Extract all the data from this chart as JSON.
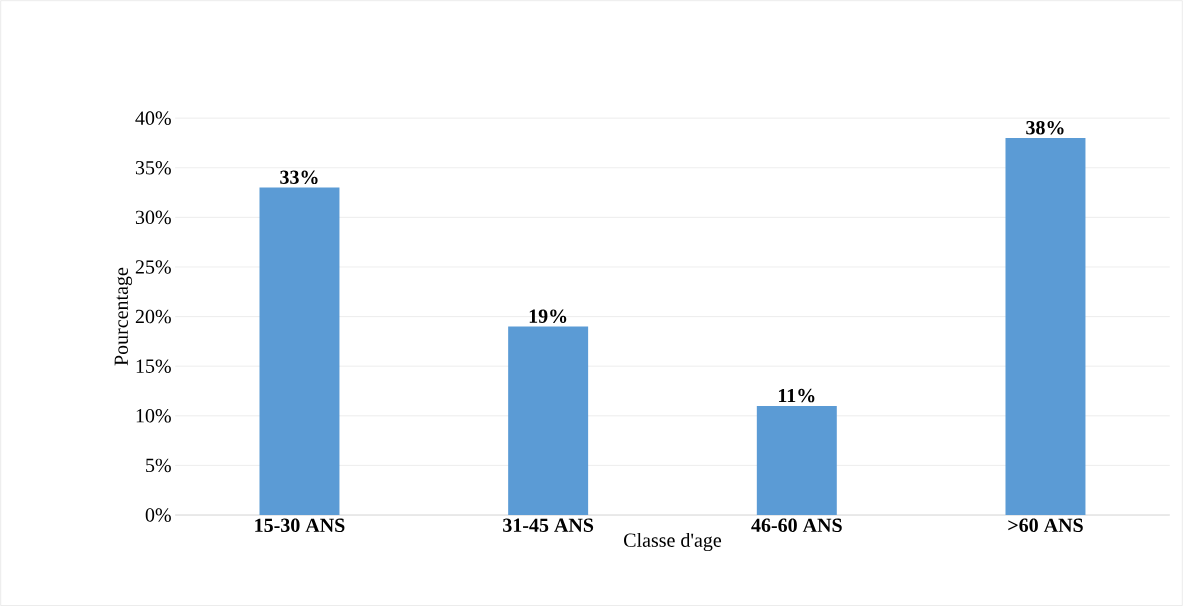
{
  "chart_data": {
    "type": "bar",
    "xlabel": "Classe d'age",
    "ylabel": "Pourcentage",
    "categories": [
      "15-30 ANS",
      "31-45 ANS",
      "46-60 ANS",
      ">60 ANS"
    ],
    "values": [
      33,
      19,
      11,
      38
    ],
    "value_labels": [
      "33%",
      "19%",
      "11%",
      "38%"
    ],
    "color": "#5b9bd5",
    "ylim": [
      0,
      40
    ],
    "yticks": [
      {
        "value": 0,
        "label": "0%"
      },
      {
        "value": 5,
        "label": "5%"
      },
      {
        "value": 10,
        "label": "10%"
      },
      {
        "value": 15,
        "label": "15%"
      },
      {
        "value": 20,
        "label": "20%"
      },
      {
        "value": 25,
        "label": "25%"
      },
      {
        "value": 30,
        "label": "30%"
      },
      {
        "value": 35,
        "label": "35%"
      },
      {
        "value": 40,
        "label": "40%"
      }
    ],
    "grid": "y"
  }
}
